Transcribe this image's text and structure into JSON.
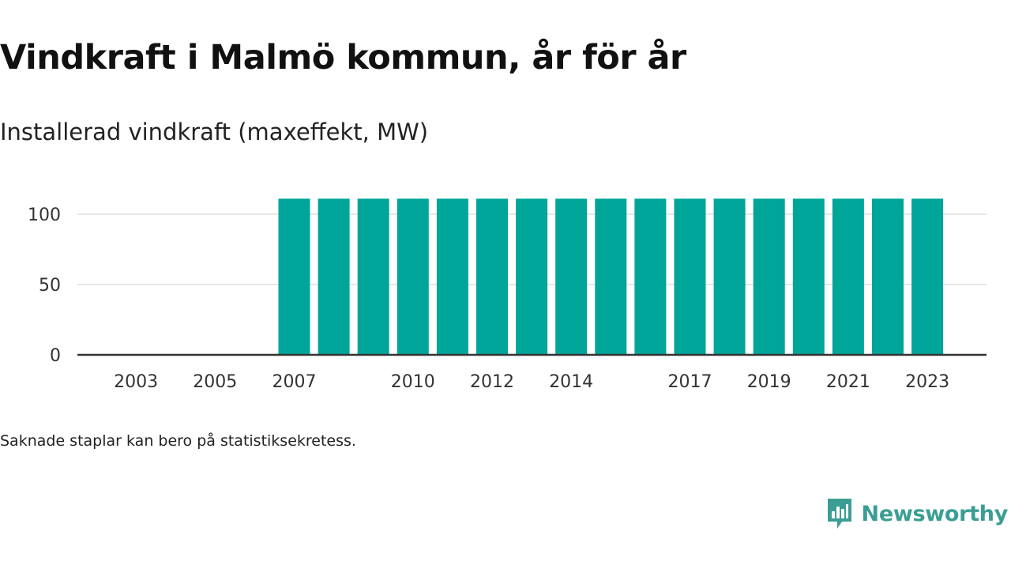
{
  "title": "Vindkraft i Malmö kommun, år för år",
  "subtitle": "Installerad vindkraft (maxeffekt, MW)",
  "note": "Saknade staplar kan bero på statistiksekretess.",
  "brand": {
    "name": "Newsworthy",
    "icon": "newsworthy-logo-icon"
  },
  "colors": {
    "bar": "#00a59a",
    "grid": "#dddddd",
    "axis": "#333333",
    "brand": "#3b9e94"
  },
  "chart_data": {
    "type": "bar",
    "title": "Vindkraft i Malmö kommun, år för år",
    "subtitle": "Installerad vindkraft (maxeffekt, MW)",
    "xlabel": "",
    "ylabel": "",
    "categories": [
      "2002",
      "2003",
      "2004",
      "2005",
      "2006",
      "2007",
      "2008",
      "2009",
      "2010",
      "2011",
      "2012",
      "2013",
      "2014",
      "2015",
      "2016",
      "2017",
      "2018",
      "2019",
      "2020",
      "2021",
      "2022",
      "2023"
    ],
    "values": [
      null,
      0.5,
      0.5,
      0.5,
      0.5,
      111,
      111,
      111,
      111,
      111,
      111,
      111,
      111,
      111,
      111,
      111,
      111,
      111,
      111,
      111,
      111,
      111
    ],
    "x_tick_labels": [
      "2003",
      "2005",
      "2007",
      "2010",
      "2012",
      "2014",
      "2017",
      "2019",
      "2021",
      "2023"
    ],
    "y_ticks": [
      0,
      50,
      100
    ],
    "y_tick_labels": [
      "0",
      "50",
      "100"
    ],
    "ylim": [
      0,
      111
    ],
    "grid": true,
    "legend": "none"
  }
}
